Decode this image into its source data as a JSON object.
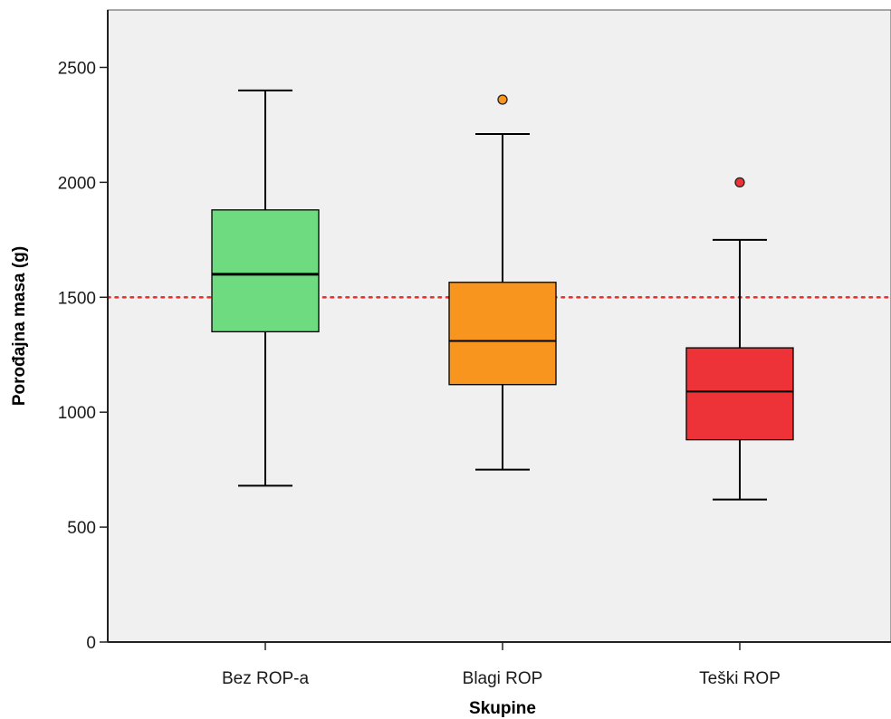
{
  "chart_data": {
    "type": "box",
    "xlabel": "Skupine",
    "ylabel": "Porođajna masa (g)",
    "ylim": [
      0,
      2750
    ],
    "yticks": [
      0,
      500,
      1000,
      1500,
      2000,
      2500
    ],
    "ytick_labels": [
      "0",
      "500",
      "1000",
      "1500",
      "2000",
      "2500"
    ],
    "grid": false,
    "reference_line": {
      "y": 1500,
      "style": "dotted",
      "color": "#e8342e"
    },
    "categories": [
      "Bez ROP-a",
      "Blagi ROP",
      "Teški ROP"
    ],
    "series": [
      {
        "category": "Bez ROP-a",
        "whisker_low": 680,
        "q1": 1350,
        "median": 1600,
        "q3": 1880,
        "whisker_high": 2400,
        "outliers": [],
        "color": "#6edb80"
      },
      {
        "category": "Blagi ROP",
        "whisker_low": 750,
        "q1": 1120,
        "median": 1310,
        "q3": 1565,
        "whisker_high": 2210,
        "outliers": [
          2360
        ],
        "color": "#f7951e"
      },
      {
        "category": "Teški ROP",
        "whisker_low": 620,
        "q1": 880,
        "median": 1090,
        "q3": 1280,
        "whisker_high": 1750,
        "outliers": [
          2000
        ],
        "color": "#ee3338"
      }
    ],
    "plot_background": "#f0f0f0"
  }
}
